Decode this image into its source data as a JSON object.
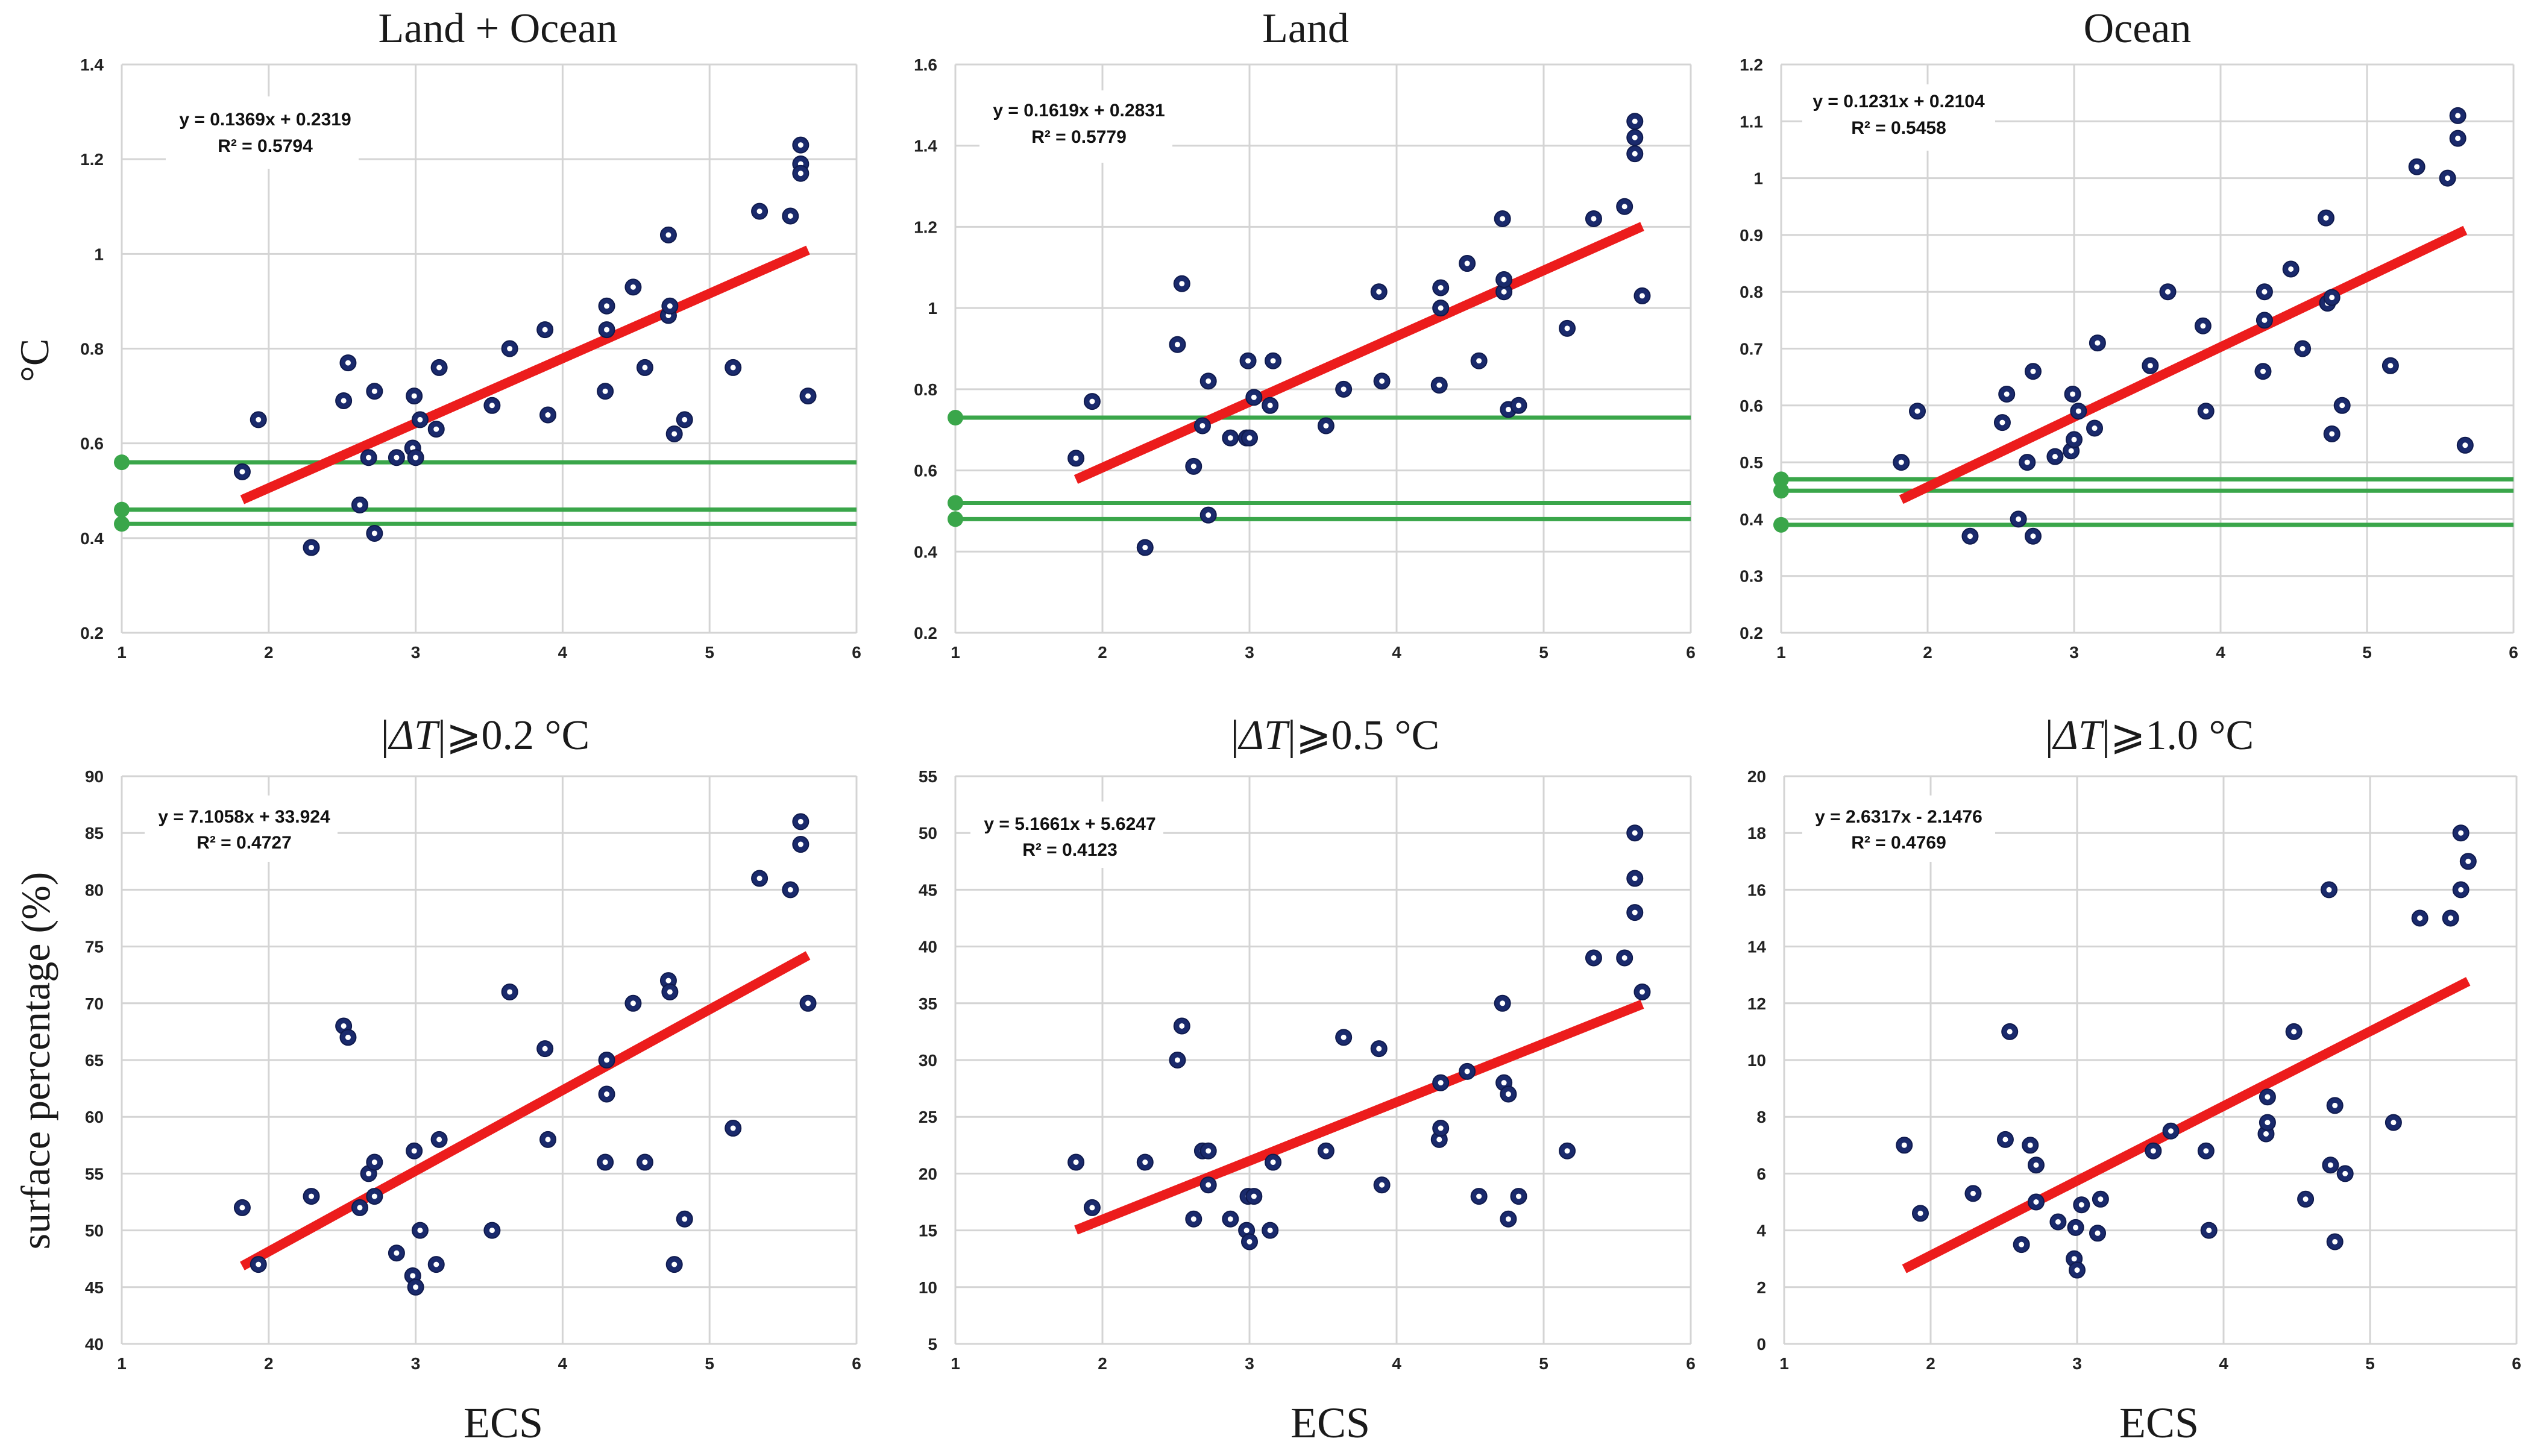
{
  "figure": {
    "row1_ylabel": "°C",
    "row2_ylabel": "surface percentage (%)",
    "xlabel": "ECS"
  },
  "chart_data": [
    {
      "type": "scatter",
      "title": "Land + Ocean",
      "xlim": [
        1,
        6
      ],
      "ylim": [
        0.2,
        1.4
      ],
      "xticks": [
        "1",
        "2",
        "3",
        "4",
        "5",
        "6"
      ],
      "yticks": [
        "0.2",
        "0.4",
        "0.6",
        "0.8",
        "1",
        "1.2",
        "1.4"
      ],
      "ytick_values": [
        0.2,
        0.4,
        0.6,
        0.8,
        1.0,
        1.2,
        1.4
      ],
      "points": [
        [
          1.82,
          0.54
        ],
        [
          1.93,
          0.65
        ],
        [
          2.29,
          0.38
        ],
        [
          2.51,
          0.69
        ],
        [
          2.54,
          0.77
        ],
        [
          2.62,
          0.47
        ],
        [
          2.68,
          0.57
        ],
        [
          2.72,
          0.41
        ],
        [
          2.72,
          0.71
        ],
        [
          2.87,
          0.57
        ],
        [
          2.98,
          0.59
        ],
        [
          2.99,
          0.7
        ],
        [
          3.0,
          0.57
        ],
        [
          3.03,
          0.65
        ],
        [
          3.14,
          0.63
        ],
        [
          3.16,
          0.76
        ],
        [
          3.52,
          0.68
        ],
        [
          3.64,
          0.8
        ],
        [
          3.88,
          0.84
        ],
        [
          3.9,
          0.66
        ],
        [
          4.29,
          0.71
        ],
        [
          4.3,
          0.84
        ],
        [
          4.3,
          0.89
        ],
        [
          4.48,
          0.93
        ],
        [
          4.56,
          0.76
        ],
        [
          4.72,
          0.87
        ],
        [
          4.73,
          0.89
        ],
        [
          4.72,
          1.04
        ],
        [
          4.76,
          0.62
        ],
        [
          4.83,
          0.65
        ],
        [
          5.16,
          0.76
        ],
        [
          5.34,
          1.09
        ],
        [
          5.55,
          1.08
        ],
        [
          5.62,
          1.23
        ],
        [
          5.62,
          1.19
        ],
        [
          5.62,
          1.17
        ],
        [
          5.67,
          0.7
        ]
      ],
      "trend": {
        "slope": 0.1369,
        "intercept": 0.2319,
        "x_range": [
          1.82,
          5.67
        ]
      },
      "equation": "y = 0.1369x + 0.2319",
      "r2": "R² = 0.5794",
      "hlines": [
        0.56,
        0.46,
        0.43
      ]
    },
    {
      "type": "scatter",
      "title": "Land",
      "xlim": [
        1,
        6
      ],
      "ylim": [
        0.2,
        1.6
      ],
      "xticks": [
        "1",
        "2",
        "3",
        "4",
        "5",
        "6"
      ],
      "yticks": [
        "0.2",
        "0.4",
        "0.6",
        "0.8",
        "1",
        "1.2",
        "1.4",
        "1.6"
      ],
      "ytick_values": [
        0.2,
        0.4,
        0.6,
        0.8,
        1.0,
        1.2,
        1.4,
        1.6
      ],
      "points": [
        [
          1.82,
          0.63
        ],
        [
          1.93,
          0.77
        ],
        [
          2.29,
          0.41
        ],
        [
          2.51,
          0.91
        ],
        [
          2.54,
          1.06
        ],
        [
          2.62,
          0.61
        ],
        [
          2.68,
          0.71
        ],
        [
          2.72,
          0.82
        ],
        [
          2.72,
          0.49
        ],
        [
          2.87,
          0.68
        ],
        [
          2.98,
          0.68
        ],
        [
          2.99,
          0.87
        ],
        [
          3.0,
          0.68
        ],
        [
          3.03,
          0.78
        ],
        [
          3.14,
          0.76
        ],
        [
          3.16,
          0.87
        ],
        [
          3.52,
          0.71
        ],
        [
          3.64,
          0.8
        ],
        [
          3.88,
          1.04
        ],
        [
          3.9,
          0.82
        ],
        [
          4.29,
          0.81
        ],
        [
          4.3,
          1.0
        ],
        [
          4.3,
          1.05
        ],
        [
          4.48,
          1.11
        ],
        [
          4.56,
          0.87
        ],
        [
          4.72,
          1.22
        ],
        [
          4.73,
          1.04
        ],
        [
          4.73,
          1.07
        ],
        [
          4.76,
          0.75
        ],
        [
          4.83,
          0.76
        ],
        [
          5.16,
          0.95
        ],
        [
          5.34,
          1.22
        ],
        [
          5.55,
          1.25
        ],
        [
          5.62,
          1.46
        ],
        [
          5.62,
          1.42
        ],
        [
          5.62,
          1.38
        ],
        [
          5.67,
          1.03
        ]
      ],
      "trend": {
        "slope": 0.1619,
        "intercept": 0.2831,
        "x_range": [
          1.82,
          5.67
        ]
      },
      "equation": "y = 0.1619x + 0.2831",
      "r2": "R² = 0.5779",
      "hlines": [
        0.73,
        0.52,
        0.48
      ]
    },
    {
      "type": "scatter",
      "title": "Ocean",
      "xlim": [
        1,
        6
      ],
      "ylim": [
        0.2,
        1.2
      ],
      "xticks": [
        "1",
        "2",
        "3",
        "4",
        "5",
        "6"
      ],
      "yticks": [
        "0.2",
        "0.3",
        "0.4",
        "0.5",
        "0.6",
        "0.7",
        "0.8",
        "0.9",
        "1",
        "1.1",
        "1.2"
      ],
      "ytick_values": [
        0.2,
        0.3,
        0.4,
        0.5,
        0.6,
        0.7,
        0.8,
        0.9,
        1.0,
        1.1,
        1.2
      ],
      "points": [
        [
          1.82,
          0.5
        ],
        [
          1.93,
          0.59
        ],
        [
          2.29,
          0.37
        ],
        [
          2.51,
          0.57
        ],
        [
          2.54,
          0.62
        ],
        [
          2.62,
          0.4
        ],
        [
          2.68,
          0.5
        ],
        [
          2.72,
          0.66
        ],
        [
          2.72,
          0.37
        ],
        [
          2.87,
          0.51
        ],
        [
          2.98,
          0.52
        ],
        [
          2.99,
          0.62
        ],
        [
          3.0,
          0.54
        ],
        [
          3.03,
          0.59
        ],
        [
          3.14,
          0.56
        ],
        [
          3.16,
          0.71
        ],
        [
          3.52,
          0.67
        ],
        [
          3.64,
          0.8
        ],
        [
          3.88,
          0.74
        ],
        [
          3.9,
          0.59
        ],
        [
          4.29,
          0.66
        ],
        [
          4.3,
          0.75
        ],
        [
          4.3,
          0.8
        ],
        [
          4.48,
          0.84
        ],
        [
          4.56,
          0.7
        ],
        [
          4.72,
          0.93
        ],
        [
          4.73,
          0.78
        ],
        [
          4.76,
          0.79
        ],
        [
          4.76,
          0.55
        ],
        [
          4.83,
          0.6
        ],
        [
          5.16,
          0.67
        ],
        [
          5.34,
          1.02
        ],
        [
          5.55,
          1.0
        ],
        [
          5.62,
          1.11
        ],
        [
          5.62,
          1.07
        ],
        [
          5.67,
          0.53
        ]
      ],
      "trend": {
        "slope": 0.1231,
        "intercept": 0.2104,
        "x_range": [
          1.82,
          5.67
        ]
      },
      "equation": "y = 0.1231x + 0.2104",
      "r2": "R² = 0.5458",
      "hlines": [
        0.47,
        0.45,
        0.39
      ]
    },
    {
      "type": "scatter",
      "title": "|ΔT| ⩾0.2 °C",
      "title_var": "ΔT",
      "title_rest": "⩾0.2 °C",
      "xlim": [
        1,
        6
      ],
      "ylim": [
        40,
        90
      ],
      "xticks": [
        "1",
        "2",
        "3",
        "4",
        "5",
        "6"
      ],
      "yticks": [
        "40",
        "45",
        "50",
        "55",
        "60",
        "65",
        "70",
        "75",
        "80",
        "85",
        "90"
      ],
      "ytick_values": [
        40,
        45,
        50,
        55,
        60,
        65,
        70,
        75,
        80,
        85,
        90
      ],
      "points": [
        [
          1.82,
          52
        ],
        [
          1.93,
          47
        ],
        [
          2.29,
          53
        ],
        [
          2.51,
          68
        ],
        [
          2.54,
          67
        ],
        [
          2.62,
          52
        ],
        [
          2.68,
          55
        ],
        [
          2.72,
          56
        ],
        [
          2.72,
          53
        ],
        [
          2.87,
          48
        ],
        [
          2.98,
          46
        ],
        [
          2.99,
          57
        ],
        [
          3.0,
          45
        ],
        [
          3.03,
          50
        ],
        [
          3.14,
          47
        ],
        [
          3.16,
          58
        ],
        [
          3.52,
          50
        ],
        [
          3.64,
          71
        ],
        [
          3.88,
          66
        ],
        [
          3.9,
          58
        ],
        [
          4.29,
          56
        ],
        [
          4.3,
          62
        ],
        [
          4.3,
          65
        ],
        [
          4.48,
          70
        ],
        [
          4.56,
          56
        ],
        [
          4.72,
          72
        ],
        [
          4.73,
          71
        ],
        [
          4.76,
          47
        ],
        [
          4.83,
          51
        ],
        [
          5.16,
          59
        ],
        [
          5.34,
          81
        ],
        [
          5.55,
          80
        ],
        [
          5.62,
          86
        ],
        [
          5.62,
          84
        ],
        [
          5.67,
          70
        ]
      ],
      "trend": {
        "slope": 7.1058,
        "intercept": 33.924,
        "x_range": [
          1.82,
          5.67
        ]
      },
      "equation": "y = 7.1058x + 33.924",
      "r2": "R² = 0.4727",
      "hlines": []
    },
    {
      "type": "scatter",
      "title": "|ΔT| ⩾0.5 °C",
      "title_var": "ΔT",
      "title_rest": "⩾0.5 °C",
      "xlim": [
        1,
        6
      ],
      "ylim": [
        5,
        55
      ],
      "xticks": [
        "1",
        "2",
        "3",
        "4",
        "5",
        "6"
      ],
      "yticks": [
        "5",
        "10",
        "15",
        "20",
        "25",
        "30",
        "35",
        "40",
        "45",
        "50",
        "55"
      ],
      "ytick_values": [
        5,
        10,
        15,
        20,
        25,
        30,
        35,
        40,
        45,
        50,
        55
      ],
      "points": [
        [
          1.82,
          21
        ],
        [
          1.93,
          17
        ],
        [
          2.29,
          21
        ],
        [
          2.51,
          30
        ],
        [
          2.54,
          33
        ],
        [
          2.62,
          16
        ],
        [
          2.68,
          22
        ],
        [
          2.72,
          22
        ],
        [
          2.72,
          19
        ],
        [
          2.87,
          16
        ],
        [
          2.98,
          15
        ],
        [
          2.99,
          18
        ],
        [
          3.0,
          14
        ],
        [
          3.03,
          18
        ],
        [
          3.14,
          15
        ],
        [
          3.16,
          21
        ],
        [
          3.52,
          22
        ],
        [
          3.64,
          32
        ],
        [
          3.88,
          31
        ],
        [
          3.9,
          19
        ],
        [
          4.29,
          23
        ],
        [
          4.3,
          28
        ],
        [
          4.3,
          24
        ],
        [
          4.48,
          29
        ],
        [
          4.56,
          18
        ],
        [
          4.72,
          35
        ],
        [
          4.73,
          28
        ],
        [
          4.76,
          27
        ],
        [
          4.76,
          16
        ],
        [
          4.83,
          18
        ],
        [
          5.16,
          22
        ],
        [
          5.34,
          39
        ],
        [
          5.55,
          39
        ],
        [
          5.62,
          50
        ],
        [
          5.62,
          46
        ],
        [
          5.62,
          43
        ],
        [
          5.67,
          36
        ]
      ],
      "trend": {
        "slope": 5.1661,
        "intercept": 5.6247,
        "x_range": [
          1.82,
          5.67
        ]
      },
      "equation": "y = 5.1661x + 5.6247",
      "r2": "R² = 0.4123",
      "hlines": []
    },
    {
      "type": "scatter",
      "title": "|ΔT| ⩾1.0 °C",
      "title_var": "ΔT",
      "title_rest": "⩾1.0 °C",
      "xlim": [
        1,
        6
      ],
      "ylim": [
        0,
        20
      ],
      "xticks": [
        "1",
        "2",
        "3",
        "4",
        "5",
        "6"
      ],
      "yticks": [
        "0",
        "2",
        "4",
        "6",
        "8",
        "10",
        "12",
        "14",
        "16",
        "18",
        "20"
      ],
      "ytick_values": [
        0,
        2,
        4,
        6,
        8,
        10,
        12,
        14,
        16,
        18,
        20
      ],
      "points": [
        [
          1.82,
          7.0
        ],
        [
          1.93,
          4.6
        ],
        [
          2.29,
          5.3
        ],
        [
          2.51,
          7.2
        ],
        [
          2.54,
          11.0
        ],
        [
          2.62,
          3.5
        ],
        [
          2.68,
          7.0
        ],
        [
          2.72,
          6.3
        ],
        [
          2.72,
          5.0
        ],
        [
          2.87,
          4.3
        ],
        [
          2.98,
          3.0
        ],
        [
          2.99,
          4.1
        ],
        [
          3.0,
          2.6
        ],
        [
          3.03,
          4.9
        ],
        [
          3.14,
          3.9
        ],
        [
          3.16,
          5.1
        ],
        [
          3.52,
          6.8
        ],
        [
          3.64,
          7.5
        ],
        [
          3.88,
          6.8
        ],
        [
          3.9,
          4.0
        ],
        [
          4.29,
          7.4
        ],
        [
          4.3,
          7.8
        ],
        [
          4.3,
          8.7
        ],
        [
          4.48,
          11.0
        ],
        [
          4.56,
          5.1
        ],
        [
          4.72,
          16.0
        ],
        [
          4.76,
          8.4
        ],
        [
          4.73,
          6.3
        ],
        [
          4.76,
          3.6
        ],
        [
          4.83,
          6.0
        ],
        [
          5.16,
          7.8
        ],
        [
          5.34,
          15.0
        ],
        [
          5.55,
          15.0
        ],
        [
          5.62,
          18.0
        ],
        [
          5.62,
          16.0
        ],
        [
          5.67,
          17.0
        ]
      ],
      "trend": {
        "slope": 2.6317,
        "intercept": -2.1476,
        "x_range": [
          1.82,
          5.67
        ]
      },
      "equation": "y = 2.6317x - 2.1476",
      "r2": "R² = 0.4769",
      "hlines": []
    }
  ]
}
